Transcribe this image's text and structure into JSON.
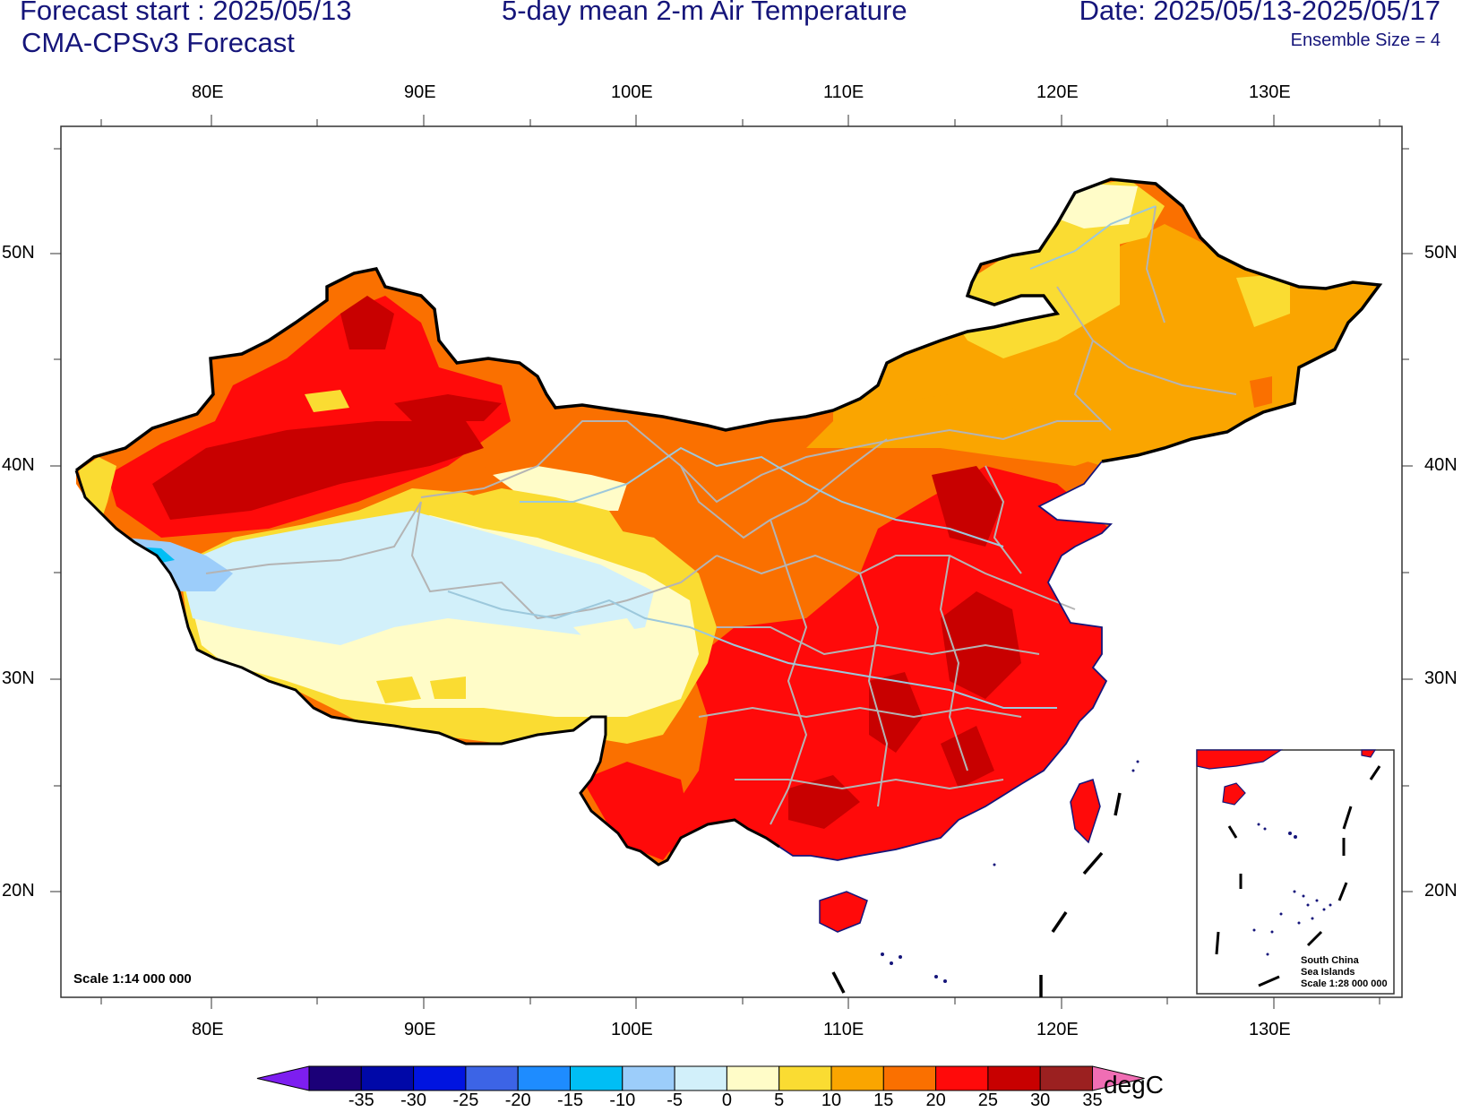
{
  "header": {
    "forecast_start": "Forecast start : 2025/05/13",
    "model": "CMA-CPSv3 Forecast",
    "title": "5-day mean 2-m Air Temperature",
    "date_range": "Date: 2025/05/13-2025/05/17",
    "ensemble": "Ensemble Size = 4"
  },
  "axes": {
    "lon_labels": [
      "80E",
      "90E",
      "100E",
      "110E",
      "120E",
      "130E"
    ],
    "lat_labels": [
      "50N",
      "40N",
      "30N",
      "20N"
    ]
  },
  "map": {
    "scale": "Scale 1:14 000 000",
    "inset_title_1": "South China",
    "inset_title_2": "Sea Islands",
    "inset_scale": "Scale 1:28 000 000"
  },
  "colorbar": {
    "unit": "degC",
    "labels": [
      "-35",
      "-30",
      "-25",
      "-20",
      "-15",
      "-10",
      "-5",
      "0",
      "5",
      "10",
      "15",
      "20",
      "25",
      "30",
      "35"
    ],
    "colors": [
      "#1b0078",
      "#0008a8",
      "#0014e0",
      "#3c64e6",
      "#1e8cff",
      "#00bef5",
      "#9ccdfa",
      "#d2f0fa",
      "#fffcc8",
      "#fadc32",
      "#faa500",
      "#fa7000",
      "#ff0a0a",
      "#c80000",
      "#9b2020"
    ],
    "end_low": "#7d1ef0",
    "end_high": "#f06eb4"
  }
}
